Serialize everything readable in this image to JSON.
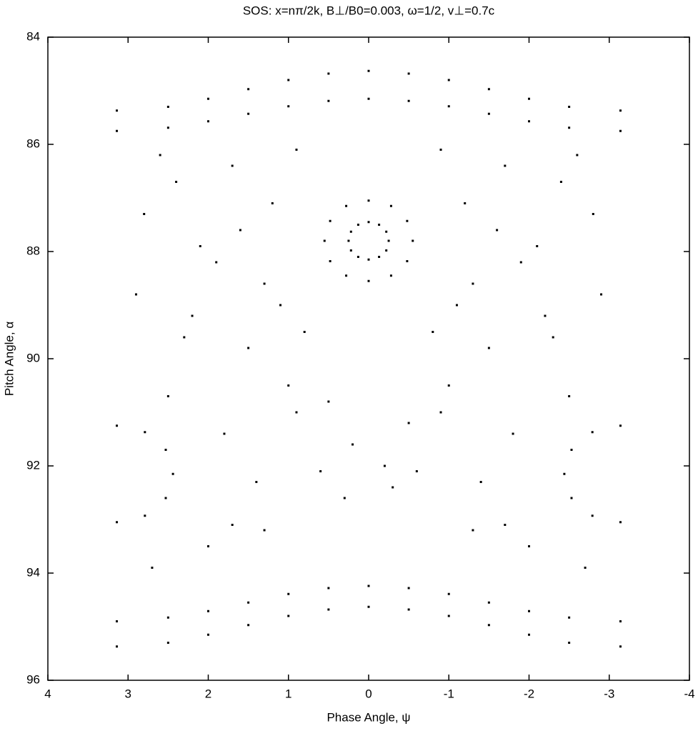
{
  "chart_data": {
    "type": "scatter",
    "title": "SOS: x=nπ/2k, B⊥/B0=0.003, ω=1/2, v⊥=0.7c",
    "x_label": "Phase Angle, ψ",
    "y_label": "Pitch Angle, α",
    "xlim": [
      4,
      -4
    ],
    "ylim": [
      96,
      84
    ],
    "xticks": [
      4,
      3,
      2,
      1,
      0,
      -1,
      -2,
      -3,
      -4
    ],
    "yticks": [
      84,
      86,
      88,
      90,
      92,
      94,
      96
    ],
    "grid": false,
    "series": [
      {
        "color": "#000000",
        "x": [
          3.14,
          2.5,
          2,
          1.5,
          1,
          0.5,
          0,
          -0.5,
          -1,
          -1.5,
          -2,
          -2.5,
          -3.14
        ],
        "y": [
          85.37,
          85.3,
          85.15,
          84.97,
          84.8,
          84.68,
          84.63,
          84.68,
          84.8,
          84.97,
          85.15,
          85.3,
          85.37
        ]
      },
      {
        "color": "#000000",
        "x": [
          3.14,
          2.5,
          2,
          1.5,
          1,
          0.5,
          0,
          -0.5,
          -1,
          -1.5,
          -2,
          -2.5,
          -3.14
        ],
        "y": [
          85.75,
          85.69,
          85.57,
          85.43,
          85.29,
          85.19,
          85.15,
          85.19,
          85.29,
          85.43,
          85.57,
          85.69,
          85.75
        ]
      },
      {
        "color": "#000000",
        "x": [
          3.14,
          2.5,
          2,
          1.5,
          1,
          0.5,
          0,
          -0.5,
          -1,
          -1.5,
          -2,
          -2.5,
          -3.14
        ],
        "y": [
          95.37,
          95.3,
          95.15,
          94.97,
          94.8,
          94.68,
          94.63,
          94.68,
          94.8,
          94.97,
          95.15,
          95.3,
          95.37
        ]
      },
      {
        "color": "#000000",
        "x": [
          3.14,
          2.5,
          2,
          1.5,
          1,
          0.5,
          0,
          -0.5,
          -1,
          -1.5,
          -2,
          -2.5,
          -3.14
        ],
        "y": [
          94.9,
          94.83,
          94.71,
          94.55,
          94.39,
          94.28,
          94.24,
          94.28,
          94.39,
          94.55,
          94.71,
          94.83,
          94.9
        ]
      },
      {
        "color": "#000000",
        "x": [
          0.55,
          0.48,
          0.28,
          0,
          -0.28,
          -0.48,
          -0.55,
          -0.48,
          -0.28,
          0,
          0.28,
          0.48
        ],
        "y": [
          87.8,
          88.18,
          88.45,
          88.55,
          88.45,
          88.18,
          87.8,
          87.43,
          87.15,
          87.05,
          87.15,
          87.43
        ]
      },
      {
        "color": "#000000",
        "x": [
          0.25,
          0.22,
          0.13,
          0,
          -0.13,
          -0.22,
          -0.25,
          -0.22,
          -0.13,
          0,
          0.13,
          0.22
        ],
        "y": [
          87.8,
          87.98,
          88.1,
          88.15,
          88.1,
          87.98,
          87.8,
          87.63,
          87.5,
          87.45,
          87.5,
          87.63
        ]
      },
      {
        "color": "#000000",
        "x": [
          -3.14,
          -2.79,
          -2.53,
          -2.44,
          -2.53,
          -2.79,
          -3.14
        ],
        "y": [
          91.25,
          91.37,
          91.7,
          92.15,
          92.6,
          92.93,
          93.05
        ]
      },
      {
        "color": "#000000",
        "x": [
          3.14,
          2.79,
          2.53,
          2.44,
          2.53,
          2.79,
          3.14
        ],
        "y": [
          91.25,
          91.37,
          91.7,
          92.15,
          92.6,
          92.93,
          93.05
        ]
      },
      {
        "color": "#000000",
        "x": [
          2.8,
          2.4,
          2.1,
          1.7,
          1.3,
          0.9,
          -0.9,
          -1.3,
          -1.7,
          -2.1,
          -2.4,
          -2.8,
          2.9,
          2.2,
          1.6,
          1.1,
          -1.1,
          -1.6,
          -2.2,
          -2.9,
          2.6,
          1.9,
          1.2,
          -1.2,
          -1.9,
          -2.6,
          2.3,
          1.5,
          0.8,
          -0.8,
          -1.5,
          -2.3,
          0.5,
          -0.5,
          1.0,
          -1.0,
          0.2,
          -0.2,
          1.8,
          -1.8,
          2.5,
          1.4,
          0.6,
          -0.6,
          -1.4,
          -2.5,
          0.3,
          -0.3,
          1.7,
          -1.7,
          2.7,
          2.0,
          1.3,
          -1.3,
          -2.0,
          -2.7,
          0.9,
          -0.9
        ],
        "y": [
          87.3,
          86.7,
          87.9,
          86.4,
          88.6,
          86.1,
          86.1,
          88.6,
          86.4,
          87.9,
          86.7,
          87.3,
          88.8,
          89.2,
          87.6,
          89.0,
          89.0,
          87.6,
          89.2,
          88.8,
          86.2,
          88.2,
          87.1,
          87.1,
          88.2,
          86.2,
          89.6,
          89.8,
          89.5,
          89.5,
          89.8,
          89.6,
          90.8,
          91.2,
          90.5,
          90.5,
          91.6,
          92.0,
          91.4,
          91.4,
          90.7,
          92.3,
          92.1,
          92.1,
          92.3,
          90.7,
          92.6,
          92.4,
          93.1,
          93.1,
          93.9,
          93.5,
          93.2,
          93.2,
          93.5,
          93.9,
          91.0,
          91.0
        ]
      }
    ]
  }
}
